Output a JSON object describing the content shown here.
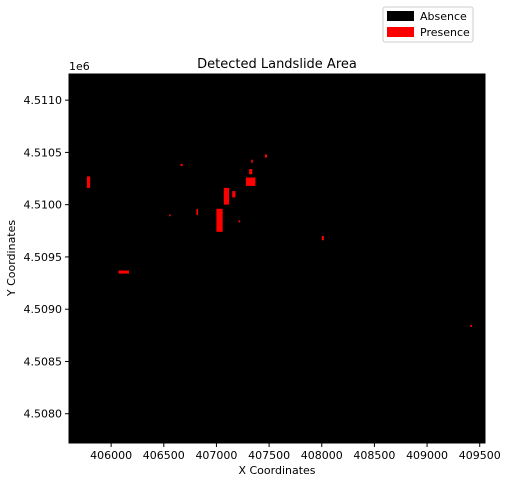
{
  "chart_data": {
    "type": "heatmap",
    "title": "Detected Landslide Area",
    "xlabel": "X Coordinates",
    "ylabel": "Y Coordinates",
    "offset_label": "1e6",
    "xlim": [
      405600,
      409550
    ],
    "ylim": [
      4507720,
      4511250
    ],
    "x_ticks": [
      406000,
      406500,
      407000,
      407500,
      408000,
      408500,
      409000,
      409500
    ],
    "x_tick_labels": [
      "406000",
      "406500",
      "407000",
      "407500",
      "408000",
      "408500",
      "409000",
      "409500"
    ],
    "y_ticks": [
      4508000,
      4508500,
      4509000,
      4509500,
      4510000,
      4510500,
      4511000
    ],
    "y_tick_labels": [
      "4.5080",
      "4.5085",
      "4.5090",
      "4.5095",
      "4.5100",
      "4.5105",
      "4.5110"
    ],
    "grid": false,
    "legend_position": "top-right-outside",
    "legend": [
      {
        "label": "Absence",
        "color": "#000000"
      },
      {
        "label": "Presence",
        "color": "#ff0000"
      }
    ],
    "background_class": "Absence",
    "presence_regions": [
      {
        "x": 405770,
        "y": 4510160,
        "w": 30,
        "h": 110
      },
      {
        "x": 406070,
        "y": 4509340,
        "w": 100,
        "h": 30
      },
      {
        "x": 406660,
        "y": 4510370,
        "w": 20,
        "h": 20
      },
      {
        "x": 406550,
        "y": 4509890,
        "w": 15,
        "h": 15
      },
      {
        "x": 406810,
        "y": 4509900,
        "w": 15,
        "h": 60
      },
      {
        "x": 407000,
        "y": 4509740,
        "w": 60,
        "h": 220
      },
      {
        "x": 407070,
        "y": 4510000,
        "w": 50,
        "h": 160
      },
      {
        "x": 407150,
        "y": 4510070,
        "w": 30,
        "h": 60
      },
      {
        "x": 407280,
        "y": 4510180,
        "w": 90,
        "h": 80
      },
      {
        "x": 407310,
        "y": 4510290,
        "w": 30,
        "h": 50
      },
      {
        "x": 407330,
        "y": 4510400,
        "w": 15,
        "h": 30
      },
      {
        "x": 407460,
        "y": 4510450,
        "w": 20,
        "h": 30
      },
      {
        "x": 407210,
        "y": 4509830,
        "w": 15,
        "h": 20
      },
      {
        "x": 408000,
        "y": 4509660,
        "w": 20,
        "h": 40
      },
      {
        "x": 409410,
        "y": 4508830,
        "w": 15,
        "h": 20
      }
    ]
  }
}
